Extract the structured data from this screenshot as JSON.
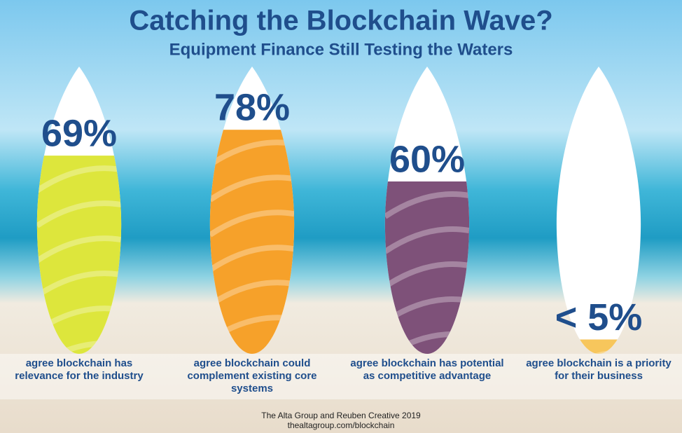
{
  "chart_data": {
    "type": "bar",
    "title": "Catching the Blockchain Wave?",
    "subtitle": "Equipment Finance Still Testing the Waters",
    "categories": [
      "agree blockchain has relevance for the industry",
      "agree blockchain could complement existing core systems",
      "agree blockchain has potential as competitive advantage",
      "agree blockchain is a priority for their business"
    ],
    "values": [
      69,
      78,
      60,
      5
    ],
    "value_labels": [
      "69%",
      "78%",
      "60%",
      "< 5%"
    ],
    "colors": [
      "#dde63c",
      "#f6a12a",
      "#7e5179",
      "#f7c65c"
    ],
    "ylim": [
      0,
      100
    ],
    "source": [
      "The Alta Group and Reuben Creative 2019",
      "thealtagroup.com/blockchain"
    ]
  }
}
